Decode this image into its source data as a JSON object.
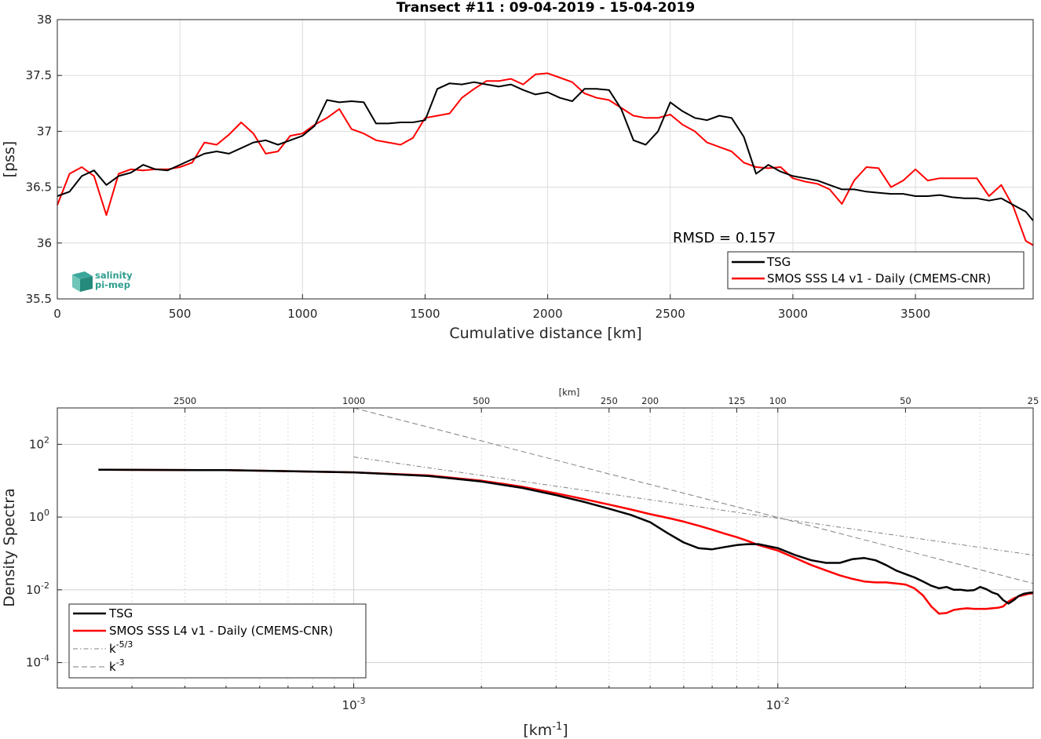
{
  "colors": {
    "tsg": "#000000",
    "smos": "#ff0000",
    "ref": "#808080",
    "grid": "#dcdcdc",
    "logo": "#2e9e8e"
  },
  "logo": {
    "icon": "salinity-pimep-logo-icon",
    "line1": "salinity",
    "line2": "pi-mep"
  },
  "chart_data": [
    {
      "type": "line",
      "title": "Transect #11 : 09-04-2019 - 15-04-2019",
      "xlabel": "Cumulative distance [km]",
      "ylabel": "[pss]",
      "xlim": [
        0,
        3980
      ],
      "ylim": [
        35.5,
        38
      ],
      "xticks": [
        0,
        500,
        1000,
        1500,
        2000,
        2500,
        3000,
        3500
      ],
      "yticks": [
        35.5,
        36,
        36.5,
        37,
        37.5,
        38
      ],
      "grid": true,
      "legend_position": "bottom-right",
      "annotation": "RMSD = 0.157",
      "series": [
        {
          "name": "TSG",
          "x": [
            0,
            50,
            100,
            150,
            200,
            250,
            300,
            350,
            400,
            450,
            500,
            550,
            600,
            650,
            700,
            750,
            800,
            850,
            900,
            950,
            1000,
            1050,
            1100,
            1150,
            1200,
            1250,
            1300,
            1350,
            1400,
            1450,
            1500,
            1550,
            1600,
            1650,
            1700,
            1750,
            1800,
            1850,
            1900,
            1950,
            2000,
            2050,
            2100,
            2150,
            2200,
            2250,
            2300,
            2350,
            2400,
            2450,
            2500,
            2550,
            2600,
            2650,
            2700,
            2750,
            2800,
            2850,
            2900,
            2950,
            3000,
            3050,
            3100,
            3150,
            3200,
            3250,
            3300,
            3350,
            3400,
            3450,
            3500,
            3550,
            3600,
            3650,
            3700,
            3750,
            3800,
            3850,
            3900,
            3950,
            3980
          ],
          "y": [
            36.42,
            36.46,
            36.6,
            36.65,
            36.52,
            36.6,
            36.63,
            36.7,
            36.66,
            36.65,
            36.7,
            36.75,
            36.8,
            36.82,
            36.8,
            36.85,
            36.9,
            36.92,
            36.88,
            36.92,
            36.96,
            37.05,
            37.28,
            37.26,
            37.27,
            37.26,
            37.07,
            37.07,
            37.08,
            37.08,
            37.1,
            37.38,
            37.43,
            37.42,
            37.44,
            37.42,
            37.4,
            37.42,
            37.37,
            37.33,
            37.35,
            37.3,
            37.27,
            37.38,
            37.38,
            37.37,
            37.2,
            36.92,
            36.88,
            37.0,
            37.26,
            37.18,
            37.12,
            37.1,
            37.14,
            37.12,
            36.95,
            36.62,
            36.7,
            36.64,
            36.6,
            36.58,
            36.56,
            36.52,
            36.48,
            36.48,
            36.46,
            36.45,
            36.44,
            36.44,
            36.42,
            36.42,
            36.43,
            36.41,
            36.4,
            36.4,
            36.38,
            36.4,
            36.34,
            36.28,
            36.2
          ]
        },
        {
          "name": "SMOS SSS L4 v1 - Daily (CMEMS-CNR)",
          "x": [
            0,
            50,
            100,
            150,
            200,
            250,
            300,
            350,
            400,
            450,
            500,
            550,
            600,
            650,
            700,
            750,
            800,
            850,
            900,
            950,
            1000,
            1050,
            1100,
            1150,
            1200,
            1250,
            1300,
            1350,
            1400,
            1450,
            1500,
            1550,
            1600,
            1650,
            1700,
            1750,
            1800,
            1850,
            1900,
            1950,
            2000,
            2050,
            2100,
            2150,
            2200,
            2250,
            2300,
            2350,
            2400,
            2450,
            2500,
            2550,
            2600,
            2650,
            2700,
            2750,
            2800,
            2850,
            2900,
            2950,
            3000,
            3050,
            3100,
            3150,
            3200,
            3250,
            3300,
            3350,
            3400,
            3450,
            3500,
            3550,
            3600,
            3650,
            3700,
            3750,
            3800,
            3850,
            3900,
            3950,
            3980
          ],
          "y": [
            36.34,
            36.62,
            36.68,
            36.6,
            36.25,
            36.62,
            36.66,
            36.65,
            36.66,
            36.66,
            36.68,
            36.72,
            36.9,
            36.88,
            36.97,
            37.08,
            36.98,
            36.8,
            36.82,
            36.96,
            36.98,
            37.06,
            37.12,
            37.2,
            37.02,
            36.98,
            36.92,
            36.9,
            36.88,
            36.94,
            37.12,
            37.14,
            37.16,
            37.3,
            37.38,
            37.45,
            37.45,
            37.47,
            37.42,
            37.51,
            37.52,
            37.48,
            37.44,
            37.34,
            37.3,
            37.28,
            37.21,
            37.14,
            37.12,
            37.12,
            37.15,
            37.06,
            37.0,
            36.9,
            36.86,
            36.82,
            36.72,
            36.68,
            36.67,
            36.68,
            36.58,
            36.55,
            36.53,
            36.48,
            36.35,
            36.56,
            36.68,
            36.67,
            36.5,
            36.56,
            36.66,
            36.56,
            36.58,
            36.58,
            36.58,
            36.58,
            36.42,
            36.52,
            36.32,
            36.02,
            35.98
          ]
        }
      ]
    },
    {
      "type": "line",
      "xlabel_base": "[km",
      "xlabel_sup": "-1",
      "xlabel_end": "]",
      "ylabel": "Density Spectra",
      "top_axis_label": "[km]",
      "xscale": "log",
      "yscale": "log",
      "xlim": [
        0.0002,
        0.04
      ],
      "ylim": [
        2e-05,
        1000
      ],
      "grid": true,
      "legend_position": "bottom-left",
      "x_major_ticks": [
        {
          "value": 0.001,
          "base": "10",
          "exp": "-3"
        },
        {
          "value": 0.01,
          "base": "10",
          "exp": "-2"
        }
      ],
      "y_major_ticks": [
        {
          "value": 0.0001,
          "base": "10",
          "exp": "-4"
        },
        {
          "value": 0.01,
          "base": "10",
          "exp": "-2"
        },
        {
          "value": 1,
          "base": "10",
          "exp": "0"
        },
        {
          "value": 100,
          "base": "10",
          "exp": "2"
        }
      ],
      "top_ticks_km": [
        2500,
        1000,
        500,
        250,
        200,
        125,
        100,
        50,
        25
      ],
      "series": [
        {
          "name": "TSG",
          "x": [
            0.00025,
            0.0005,
            0.001,
            0.0015,
            0.002,
            0.0025,
            0.003,
            0.0035,
            0.004,
            0.0045,
            0.005,
            0.0055,
            0.006,
            0.0065,
            0.007,
            0.0075,
            0.008,
            0.0085,
            0.009,
            0.01,
            0.011,
            0.012,
            0.013,
            0.014,
            0.015,
            0.016,
            0.017,
            0.018,
            0.019,
            0.02,
            0.021,
            0.022,
            0.023,
            0.024,
            0.025,
            0.026,
            0.027,
            0.028,
            0.029,
            0.03,
            0.031,
            0.032,
            0.033,
            0.034,
            0.035,
            0.036,
            0.037,
            0.038,
            0.039,
            0.04
          ],
          "y": [
            20,
            19.5,
            17,
            13.5,
            9.5,
            6.3,
            4.0,
            2.6,
            1.7,
            1.15,
            0.72,
            0.36,
            0.2,
            0.14,
            0.13,
            0.15,
            0.17,
            0.18,
            0.18,
            0.14,
            0.09,
            0.065,
            0.055,
            0.055,
            0.07,
            0.075,
            0.065,
            0.048,
            0.034,
            0.027,
            0.022,
            0.017,
            0.013,
            0.011,
            0.012,
            0.01,
            0.01,
            0.0095,
            0.0098,
            0.012,
            0.0105,
            0.0085,
            0.0075,
            0.0052,
            0.0042,
            0.0052,
            0.0068,
            0.0078,
            0.0082,
            0.0085
          ]
        },
        {
          "name": "SMOS SSS L4 v1 - Daily (CMEMS-CNR)",
          "x": [
            0.00025,
            0.0005,
            0.001,
            0.0015,
            0.002,
            0.0025,
            0.003,
            0.0035,
            0.004,
            0.0045,
            0.005,
            0.0055,
            0.006,
            0.0065,
            0.007,
            0.0075,
            0.008,
            0.0085,
            0.009,
            0.01,
            0.011,
            0.012,
            0.013,
            0.014,
            0.015,
            0.016,
            0.017,
            0.018,
            0.019,
            0.02,
            0.021,
            0.022,
            0.023,
            0.024,
            0.025,
            0.026,
            0.027,
            0.028,
            0.029,
            0.03,
            0.031,
            0.032,
            0.033,
            0.034,
            0.035,
            0.036,
            0.037,
            0.038,
            0.039,
            0.04
          ],
          "y": [
            20,
            19.5,
            17,
            14,
            10,
            6.8,
            4.5,
            3.1,
            2.2,
            1.62,
            1.2,
            0.95,
            0.75,
            0.58,
            0.45,
            0.35,
            0.28,
            0.22,
            0.17,
            0.12,
            0.075,
            0.048,
            0.034,
            0.025,
            0.02,
            0.017,
            0.016,
            0.016,
            0.015,
            0.014,
            0.011,
            0.007,
            0.0035,
            0.0022,
            0.0023,
            0.0028,
            0.003,
            0.0031,
            0.003,
            0.003,
            0.003,
            0.0031,
            0.0032,
            0.0035,
            0.0048,
            0.0058,
            0.0066,
            0.0072,
            0.0078,
            0.008
          ]
        },
        {
          "name": "k-5/3",
          "name_base": "k",
          "name_sup": "-5/3",
          "style": "dashdot",
          "x": [
            0.001,
            0.04
          ],
          "y": [
            45,
            0.09
          ]
        },
        {
          "name": "k-3",
          "name_base": "k",
          "name_sup": "-3",
          "style": "dashed",
          "x": [
            0.001,
            0.04
          ],
          "y": [
            1000,
            0.015
          ]
        }
      ]
    }
  ]
}
